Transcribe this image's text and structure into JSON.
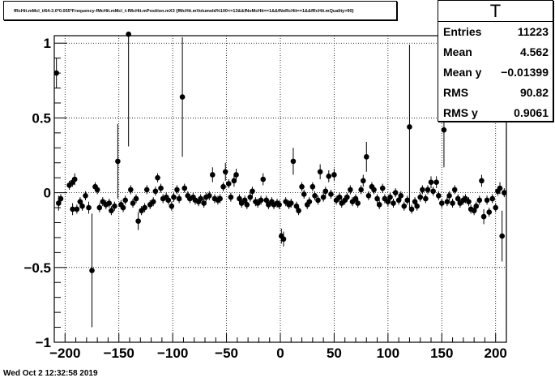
{
  "title": "fRcHit.mMcl_t/64-3.0*0.055*Frequency-fMcHit.mMcl_t:fMcHit.mPosition.mX3 {fMcHit.mVolumeId%100<=13&&fNoMcHit==1&&fNoRcHit==1&&fRcHit.mQuality>90}",
  "footer": "Wed Oct  2 12:32:58 2019",
  "stats": {
    "name": "T",
    "rows": [
      {
        "label": "Entries",
        "value": "11223"
      },
      {
        "label": "Mean",
        "value": "4.562"
      },
      {
        "label": "Mean y",
        "value": "−0.01399"
      },
      {
        "label": "RMS",
        "value": "90.82"
      },
      {
        "label": "RMS y",
        "value": "0.9061"
      }
    ]
  },
  "chart_data": {
    "type": "scatter",
    "style": "profile with vertical error bars",
    "xlim": [
      -210,
      210
    ],
    "ylim": [
      -1,
      1.05
    ],
    "xticks": [
      -200,
      -150,
      -100,
      -50,
      0,
      50,
      100,
      150,
      200
    ],
    "xtick_labels": [
      "−200",
      "−150",
      "−100",
      "−50",
      "0",
      "50",
      "100",
      "150",
      "200"
    ],
    "yticks": [
      -1,
      -0.5,
      0,
      0.5,
      1
    ],
    "ytick_labels": [
      "−1",
      "−0.5",
      "0",
      "0.5",
      "1"
    ],
    "grid": true,
    "marker_color": "#000000",
    "points": [
      {
        "x": -208,
        "y": 0.8,
        "err": 0.1
      },
      {
        "x": -206,
        "y": -0.07,
        "err": 0.05
      },
      {
        "x": -204,
        "y": -0.04,
        "err": 0.03
      },
      {
        "x": -196,
        "y": 0.05,
        "err": 0.03
      },
      {
        "x": -193,
        "y": 0.07,
        "err": 0.03
      },
      {
        "x": -191,
        "y": 0.09,
        "err": 0.04
      },
      {
        "x": -193,
        "y": -0.11,
        "err": 0.04
      },
      {
        "x": -189,
        "y": -0.11,
        "err": 0.03
      },
      {
        "x": -186,
        "y": -0.06,
        "err": 0.03
      },
      {
        "x": -184,
        "y": -0.09,
        "err": 0.03
      },
      {
        "x": -181,
        "y": -0.02,
        "err": 0.03
      },
      {
        "x": -178,
        "y": -0.1,
        "err": 0.04
      },
      {
        "x": -175,
        "y": -0.52,
        "err": 0.38
      },
      {
        "x": -172,
        "y": 0.04,
        "err": 0.03
      },
      {
        "x": -170,
        "y": 0.02,
        "err": 0.03
      },
      {
        "x": -168,
        "y": -0.1,
        "err": 0.03
      },
      {
        "x": -165,
        "y": -0.06,
        "err": 0.03
      },
      {
        "x": -162,
        "y": -0.08,
        "err": 0.03
      },
      {
        "x": -159,
        "y": -0.07,
        "err": 0.03
      },
      {
        "x": -157,
        "y": -0.12,
        "err": 0.03
      },
      {
        "x": -154,
        "y": -0.09,
        "err": 0.03
      },
      {
        "x": -151,
        "y": 0.21,
        "err": 0.25
      },
      {
        "x": -148,
        "y": -0.08,
        "err": 0.03
      },
      {
        "x": -146,
        "y": -0.1,
        "err": 0.03
      },
      {
        "x": -144,
        "y": -0.05,
        "err": 0.03
      },
      {
        "x": -141,
        "y": 1.06,
        "err": 0.75
      },
      {
        "x": -139,
        "y": 0.02,
        "err": 0.03
      },
      {
        "x": -137,
        "y": -0.07,
        "err": 0.03
      },
      {
        "x": -134,
        "y": -0.04,
        "err": 0.03
      },
      {
        "x": -132,
        "y": -0.19,
        "err": 0.06
      },
      {
        "x": -129,
        "y": -0.12,
        "err": 0.03
      },
      {
        "x": -126,
        "y": -0.1,
        "err": 0.03
      },
      {
        "x": -124,
        "y": 0.02,
        "err": 0.03
      },
      {
        "x": -121,
        "y": -0.08,
        "err": 0.03
      },
      {
        "x": -118,
        "y": -0.06,
        "err": 0.03
      },
      {
        "x": -116,
        "y": 0.01,
        "err": 0.03
      },
      {
        "x": -114,
        "y": 0.1,
        "err": 0.03
      },
      {
        "x": -111,
        "y": 0.03,
        "err": 0.03
      },
      {
        "x": -109,
        "y": -0.04,
        "err": 0.03
      },
      {
        "x": -106,
        "y": -0.03,
        "err": 0.03
      },
      {
        "x": -104,
        "y": -0.05,
        "err": 0.03
      },
      {
        "x": -101,
        "y": -0.09,
        "err": 0.03
      },
      {
        "x": -99,
        "y": -0.03,
        "err": 0.03
      },
      {
        "x": -96,
        "y": 0.02,
        "err": 0.03
      },
      {
        "x": -94,
        "y": -0.04,
        "err": 0.03
      },
      {
        "x": -91,
        "y": 0.64,
        "err": 0.4
      },
      {
        "x": -89,
        "y": 0.03,
        "err": 0.03
      },
      {
        "x": -86,
        "y": -0.02,
        "err": 0.03
      },
      {
        "x": -84,
        "y": -0.04,
        "err": 0.03
      },
      {
        "x": -81,
        "y": -0.03,
        "err": 0.03
      },
      {
        "x": -79,
        "y": -0.05,
        "err": 0.03
      },
      {
        "x": -76,
        "y": -0.06,
        "err": 0.03
      },
      {
        "x": -74,
        "y": -0.04,
        "err": 0.03
      },
      {
        "x": -71,
        "y": -0.07,
        "err": 0.03
      },
      {
        "x": -69,
        "y": -0.03,
        "err": 0.03
      },
      {
        "x": -66,
        "y": -0.02,
        "err": 0.03
      },
      {
        "x": -63,
        "y": 0.12,
        "err": 0.05
      },
      {
        "x": -61,
        "y": -0.04,
        "err": 0.03
      },
      {
        "x": -58,
        "y": -0.05,
        "err": 0.03
      },
      {
        "x": -56,
        "y": -0.04,
        "err": 0.03
      },
      {
        "x": -53,
        "y": 0.04,
        "err": 0.03
      },
      {
        "x": -51,
        "y": 0.14,
        "err": 0.06
      },
      {
        "x": -48,
        "y": 0.06,
        "err": 0.03
      },
      {
        "x": -46,
        "y": -0.03,
        "err": 0.03
      },
      {
        "x": -43,
        "y": 0.08,
        "err": 0.04
      },
      {
        "x": -41,
        "y": 0.12,
        "err": 0.04
      },
      {
        "x": -38,
        "y": -0.04,
        "err": 0.03
      },
      {
        "x": -36,
        "y": -0.07,
        "err": 0.03
      },
      {
        "x": -33,
        "y": -0.05,
        "err": 0.03
      },
      {
        "x": -31,
        "y": -0.08,
        "err": 0.03
      },
      {
        "x": -28,
        "y": -0.03,
        "err": 0.03
      },
      {
        "x": -26,
        "y": 0.01,
        "err": 0.03
      },
      {
        "x": -23,
        "y": -0.06,
        "err": 0.03
      },
      {
        "x": -21,
        "y": -0.07,
        "err": 0.03
      },
      {
        "x": -18,
        "y": -0.05,
        "err": 0.03
      },
      {
        "x": -16,
        "y": 0.09,
        "err": 0.04
      },
      {
        "x": -13,
        "y": -0.05,
        "err": 0.03
      },
      {
        "x": -11,
        "y": -0.08,
        "err": 0.03
      },
      {
        "x": -8,
        "y": -0.06,
        "err": 0.03
      },
      {
        "x": -6,
        "y": -0.08,
        "err": 0.03
      },
      {
        "x": -3,
        "y": -0.07,
        "err": 0.03
      },
      {
        "x": -1,
        "y": -0.08,
        "err": 0.03
      },
      {
        "x": 1,
        "y": -0.29,
        "err": 0.05
      },
      {
        "x": 3,
        "y": -0.31,
        "err": 0.05
      },
      {
        "x": 5,
        "y": -0.06,
        "err": 0.03
      },
      {
        "x": 8,
        "y": -0.08,
        "err": 0.03
      },
      {
        "x": 10,
        "y": -0.07,
        "err": 0.03
      },
      {
        "x": 12,
        "y": 0.21,
        "err": 0.09
      },
      {
        "x": 15,
        "y": -0.09,
        "err": 0.03
      },
      {
        "x": 17,
        "y": -0.12,
        "err": 0.03
      },
      {
        "x": 20,
        "y": 0.04,
        "err": 0.03
      },
      {
        "x": 22,
        "y": -0.01,
        "err": 0.03
      },
      {
        "x": 25,
        "y": -0.08,
        "err": 0.03
      },
      {
        "x": 27,
        "y": -0.06,
        "err": 0.03
      },
      {
        "x": 30,
        "y": 0.04,
        "err": 0.03
      },
      {
        "x": 32,
        "y": -0.02,
        "err": 0.03
      },
      {
        "x": 35,
        "y": -0.05,
        "err": 0.03
      },
      {
        "x": 37,
        "y": 0.14,
        "err": 0.05
      },
      {
        "x": 40,
        "y": -0.03,
        "err": 0.03
      },
      {
        "x": 42,
        "y": 0.01,
        "err": 0.03
      },
      {
        "x": 45,
        "y": 0.11,
        "err": 0.04
      },
      {
        "x": 47,
        "y": -0.01,
        "err": 0.03
      },
      {
        "x": 50,
        "y": 0.12,
        "err": 0.04
      },
      {
        "x": 52,
        "y": -0.05,
        "err": 0.03
      },
      {
        "x": 55,
        "y": -0.03,
        "err": 0.03
      },
      {
        "x": 57,
        "y": -0.07,
        "err": 0.03
      },
      {
        "x": 60,
        "y": -0.05,
        "err": 0.03
      },
      {
        "x": 62,
        "y": -0.03,
        "err": 0.03
      },
      {
        "x": 65,
        "y": 0.02,
        "err": 0.03
      },
      {
        "x": 67,
        "y": -0.06,
        "err": 0.03
      },
      {
        "x": 70,
        "y": -0.04,
        "err": 0.03
      },
      {
        "x": 72,
        "y": -0.07,
        "err": 0.03
      },
      {
        "x": 75,
        "y": 0.02,
        "err": 0.03
      },
      {
        "x": 77,
        "y": 0.08,
        "err": 0.04
      },
      {
        "x": 80,
        "y": 0.24,
        "err": 0.1
      },
      {
        "x": 82,
        "y": -0.02,
        "err": 0.03
      },
      {
        "x": 85,
        "y": 0.04,
        "err": 0.03
      },
      {
        "x": 87,
        "y": 0.02,
        "err": 0.03
      },
      {
        "x": 90,
        "y": -0.04,
        "err": 0.03
      },
      {
        "x": 92,
        "y": -0.08,
        "err": 0.03
      },
      {
        "x": 95,
        "y": 0.03,
        "err": 0.03
      },
      {
        "x": 97,
        "y": -0.04,
        "err": 0.03
      },
      {
        "x": 100,
        "y": -0.06,
        "err": 0.03
      },
      {
        "x": 102,
        "y": -0.03,
        "err": 0.03
      },
      {
        "x": 105,
        "y": -0.07,
        "err": 0.03
      },
      {
        "x": 107,
        "y": 0.0,
        "err": 0.03
      },
      {
        "x": 110,
        "y": -0.05,
        "err": 0.03
      },
      {
        "x": 112,
        "y": -0.02,
        "err": 0.03
      },
      {
        "x": 115,
        "y": -0.09,
        "err": 0.03
      },
      {
        "x": 118,
        "y": -0.05,
        "err": 0.03
      },
      {
        "x": 120,
        "y": 0.44,
        "err": 0.55
      },
      {
        "x": 122,
        "y": -0.11,
        "err": 0.03
      },
      {
        "x": 125,
        "y": -0.06,
        "err": 0.03
      },
      {
        "x": 127,
        "y": -0.09,
        "err": 0.03
      },
      {
        "x": 130,
        "y": -0.03,
        "err": 0.03
      },
      {
        "x": 132,
        "y": 0.02,
        "err": 0.03
      },
      {
        "x": 135,
        "y": -0.04,
        "err": 0.03
      },
      {
        "x": 137,
        "y": 0.02,
        "err": 0.03
      },
      {
        "x": 140,
        "y": 0.07,
        "err": 0.04
      },
      {
        "x": 142,
        "y": 0.01,
        "err": 0.03
      },
      {
        "x": 145,
        "y": 0.07,
        "err": 0.04
      },
      {
        "x": 147,
        "y": -0.02,
        "err": 0.03
      },
      {
        "x": 150,
        "y": -0.07,
        "err": 0.03
      },
      {
        "x": 152,
        "y": 0.42,
        "err": 0.25
      },
      {
        "x": 155,
        "y": -0.06,
        "err": 0.03
      },
      {
        "x": 157,
        "y": -0.02,
        "err": 0.03
      },
      {
        "x": 160,
        "y": -0.07,
        "err": 0.03
      },
      {
        "x": 162,
        "y": 0.02,
        "err": 0.03
      },
      {
        "x": 165,
        "y": -0.04,
        "err": 0.03
      },
      {
        "x": 167,
        "y": -0.07,
        "err": 0.03
      },
      {
        "x": 170,
        "y": -0.05,
        "err": 0.03
      },
      {
        "x": 172,
        "y": -0.04,
        "err": 0.03
      },
      {
        "x": 175,
        "y": -0.06,
        "err": 0.03
      },
      {
        "x": 177,
        "y": -0.11,
        "err": 0.03
      },
      {
        "x": 180,
        "y": -0.12,
        "err": 0.03
      },
      {
        "x": 182,
        "y": -0.09,
        "err": 0.03
      },
      {
        "x": 185,
        "y": -0.05,
        "err": 0.03
      },
      {
        "x": 187,
        "y": 0.08,
        "err": 0.04
      },
      {
        "x": 189,
        "y": -0.16,
        "err": 0.05
      },
      {
        "x": 192,
        "y": -0.05,
        "err": 0.03
      },
      {
        "x": 194,
        "y": -0.13,
        "err": 0.03
      },
      {
        "x": 197,
        "y": -0.04,
        "err": 0.03
      },
      {
        "x": 200,
        "y": -0.1,
        "err": 0.03
      },
      {
        "x": 202,
        "y": 0.01,
        "err": 0.03
      },
      {
        "x": 204,
        "y": 0.03,
        "err": 0.04
      },
      {
        "x": 206,
        "y": -0.29,
        "err": 0.17
      },
      {
        "x": 208,
        "y": 0.0,
        "err": 0.03
      }
    ]
  }
}
